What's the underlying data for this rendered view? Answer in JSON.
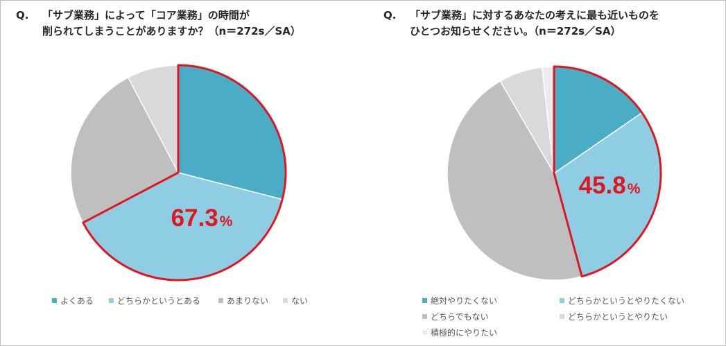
{
  "chart_data": [
    {
      "type": "pie",
      "q_mark": "Q.",
      "title": "「サブ業務」によって「コア業務」の時間が\n削られてしまうことがありますか？（n＝272s／SA）",
      "categories": [
        "よくある",
        "どちらかというとある",
        "あまりない",
        "ない"
      ],
      "values": [
        29.0,
        38.3,
        25.0,
        7.7
      ],
      "colors": [
        "#4bacc6",
        "#8ecde4",
        "#bfbfbf",
        "#d9d9d9"
      ],
      "highlight_indices": [
        0,
        1
      ],
      "highlight_label_number": "67.3",
      "highlight_label_unit": "%",
      "highlight_color": "#e0161e",
      "legend_position": "bottom"
    },
    {
      "type": "pie",
      "q_mark": "Q.",
      "title": "「サブ業務」に対するあなたの考えに最も近いものを\nひとつお知らせください。（n＝272s／SA）",
      "categories": [
        "絶対やりたくない",
        "どちらかというとやりたくない",
        "どちらでもない",
        "どちらかというとやりたい",
        "積極的にやりたい"
      ],
      "values": [
        15.4,
        30.4,
        45.8,
        6.6,
        1.8
      ],
      "colors": [
        "#4bacc6",
        "#8ecde4",
        "#bfbfbf",
        "#d9d9d9",
        "#ececec"
      ],
      "highlight_indices": [
        0,
        1
      ],
      "highlight_label_number": "45.8",
      "highlight_label_unit": "%",
      "highlight_color": "#e0161e",
      "legend_position": "bottom"
    }
  ]
}
